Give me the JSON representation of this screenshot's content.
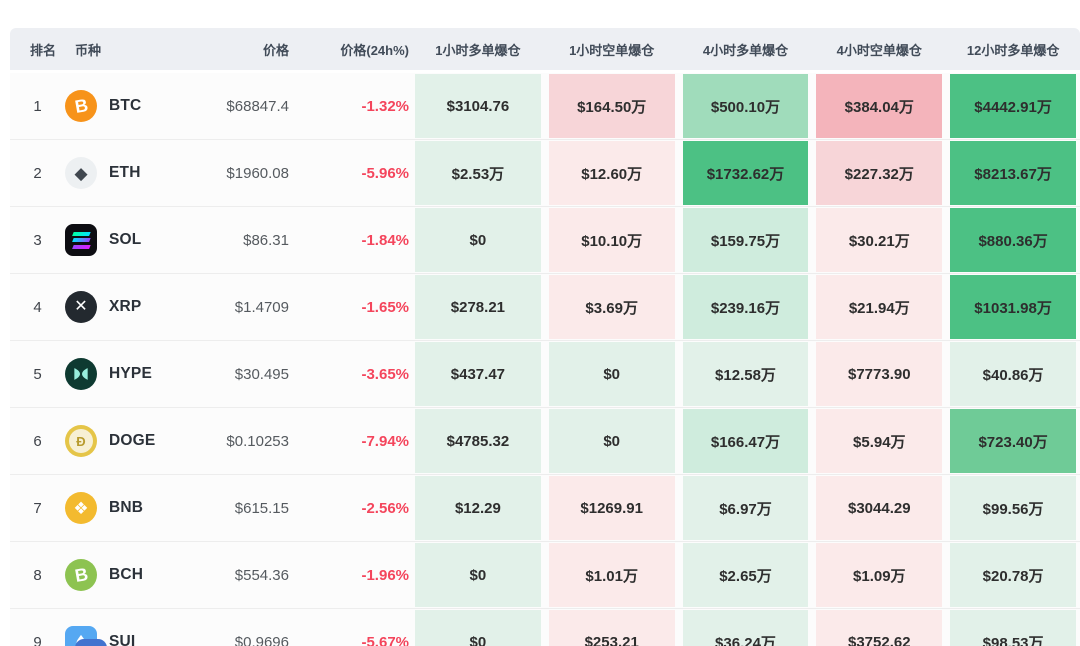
{
  "table": {
    "headers": [
      {
        "label": "排名"
      },
      {
        "label": "币种"
      },
      {
        "label": "价格"
      },
      {
        "label": "价格(24h%)"
      },
      {
        "label": "1小时多单爆仓"
      },
      {
        "label": "1小时空单爆仓"
      },
      {
        "label": "4小时多单爆仓"
      },
      {
        "label": "4小时空单爆仓"
      },
      {
        "label": "12小时多单爆仓"
      }
    ],
    "rows": [
      {
        "rank": "1",
        "symbol": "BTC",
        "icon": "btc",
        "price": "$68847.4",
        "change": "-1.32%",
        "cells": [
          {
            "v": "$3104.76",
            "c": "L1"
          },
          {
            "v": "$164.50万",
            "c": "R2"
          },
          {
            "v": "$500.10万",
            "c": "L3"
          },
          {
            "v": "$384.04万",
            "c": "R3"
          },
          {
            "v": "$4442.91万",
            "c": "L5"
          }
        ]
      },
      {
        "rank": "2",
        "symbol": "ETH",
        "icon": "eth",
        "price": "$1960.08",
        "change": "-5.96%",
        "cells": [
          {
            "v": "$2.53万",
            "c": "L1"
          },
          {
            "v": "$12.60万",
            "c": "R1"
          },
          {
            "v": "$1732.62万",
            "c": "L5"
          },
          {
            "v": "$227.32万",
            "c": "R2"
          },
          {
            "v": "$8213.67万",
            "c": "L5"
          }
        ]
      },
      {
        "rank": "3",
        "symbol": "SOL",
        "icon": "sol",
        "price": "$86.31",
        "change": "-1.84%",
        "cells": [
          {
            "v": "$0",
            "c": "L1"
          },
          {
            "v": "$10.10万",
            "c": "R1"
          },
          {
            "v": "$159.75万",
            "c": "L2"
          },
          {
            "v": "$30.21万",
            "c": "R1"
          },
          {
            "v": "$880.36万",
            "c": "L5"
          }
        ]
      },
      {
        "rank": "4",
        "symbol": "XRP",
        "icon": "xrp",
        "price": "$1.4709",
        "change": "-1.65%",
        "cells": [
          {
            "v": "$278.21",
            "c": "L1"
          },
          {
            "v": "$3.69万",
            "c": "R1"
          },
          {
            "v": "$239.16万",
            "c": "L2"
          },
          {
            "v": "$21.94万",
            "c": "R1"
          },
          {
            "v": "$1031.98万",
            "c": "L5"
          }
        ]
      },
      {
        "rank": "5",
        "symbol": "HYPE",
        "icon": "hype",
        "price": "$30.495",
        "change": "-3.65%",
        "cells": [
          {
            "v": "$437.47",
            "c": "L1"
          },
          {
            "v": "$0",
            "c": "L1"
          },
          {
            "v": "$12.58万",
            "c": "L1"
          },
          {
            "v": "$7773.90",
            "c": "R1"
          },
          {
            "v": "$40.86万",
            "c": "L1"
          }
        ]
      },
      {
        "rank": "6",
        "symbol": "DOGE",
        "icon": "doge",
        "price": "$0.10253",
        "change": "-7.94%",
        "cells": [
          {
            "v": "$4785.32",
            "c": "L1"
          },
          {
            "v": "$0",
            "c": "L1"
          },
          {
            "v": "$166.47万",
            "c": "L2"
          },
          {
            "v": "$5.94万",
            "c": "R1"
          },
          {
            "v": "$723.40万",
            "c": "L4"
          }
        ]
      },
      {
        "rank": "7",
        "symbol": "BNB",
        "icon": "bnb",
        "price": "$615.15",
        "change": "-2.56%",
        "cells": [
          {
            "v": "$12.29",
            "c": "L1"
          },
          {
            "v": "$1269.91",
            "c": "R1"
          },
          {
            "v": "$6.97万",
            "c": "L1"
          },
          {
            "v": "$3044.29",
            "c": "R1"
          },
          {
            "v": "$99.56万",
            "c": "L1"
          }
        ]
      },
      {
        "rank": "8",
        "symbol": "BCH",
        "icon": "bch",
        "price": "$554.36",
        "change": "-1.96%",
        "cells": [
          {
            "v": "$0",
            "c": "L1"
          },
          {
            "v": "$1.01万",
            "c": "R1"
          },
          {
            "v": "$2.65万",
            "c": "L1"
          },
          {
            "v": "$1.09万",
            "c": "R1"
          },
          {
            "v": "$20.78万",
            "c": "L1"
          }
        ]
      },
      {
        "rank": "9",
        "symbol": "SUI",
        "icon": "sui",
        "price": "$0.9696",
        "change": "-5.67%",
        "cells": [
          {
            "v": "$0",
            "c": "L1"
          },
          {
            "v": "$253.21",
            "c": "R1"
          },
          {
            "v": "$36.24万",
            "c": "L1"
          },
          {
            "v": "$3752.62",
            "c": "R1"
          },
          {
            "v": "$98.53万",
            "c": "L1"
          }
        ]
      }
    ]
  },
  "colors": {
    "header_bg": "#edeff3",
    "header_text": "#414b58",
    "change_red": "#f4455c",
    "L1": "#e2f1e9",
    "L2": "#cfecdd",
    "L3": "#a0dcbb",
    "L4": "#6fcb97",
    "L5": "#4cc184",
    "R1": "#fbeaea",
    "R2": "#f7d5d8",
    "R3": "#f4b4bb",
    "next_row_icon_color": "#4273cf"
  },
  "icons": {
    "btc": {
      "bg": "#f7931a",
      "fg": "#ffffff"
    },
    "eth": {
      "bg": "#edf0f2",
      "fg": "#40474f"
    },
    "sol": {
      "bg": "#0d0d12",
      "fg": "#00ffa3"
    },
    "xrp": {
      "bg": "#23292f",
      "fg": "#ffffff"
    },
    "hype": {
      "bg": "#0e3a31",
      "fg": "#97eedc"
    },
    "doge": {
      "bg": "#e5c548",
      "fg": "#b89b2e"
    },
    "bnb": {
      "bg": "#f3ba2f",
      "fg": "#ffffff"
    },
    "bch": {
      "bg": "#8dc351",
      "fg": "#ffffff"
    },
    "sui": {
      "bg": "#55a8f2",
      "fg": "#ffffff"
    }
  }
}
